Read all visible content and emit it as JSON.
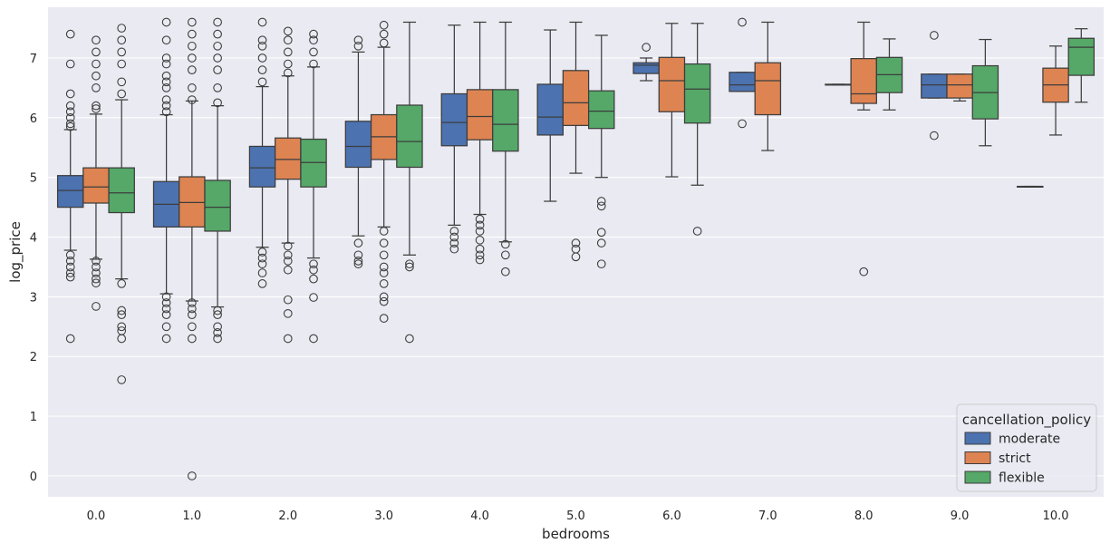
{
  "chart_data": {
    "type": "boxplot",
    "title": "",
    "xlabel": "bedrooms",
    "ylabel": "log_price",
    "categories": [
      "0.0",
      "1.0",
      "2.0",
      "3.0",
      "4.0",
      "5.0",
      "6.0",
      "7.0",
      "8.0",
      "9.0",
      "10.0"
    ],
    "ylim": [
      -0.35,
      7.85
    ],
    "yticks": [
      0,
      1,
      2,
      3,
      4,
      5,
      6,
      7
    ],
    "grid": true,
    "legend": {
      "title": "cancellation_policy",
      "position": "bottom-right",
      "entries": [
        "moderate",
        "strict",
        "flexible"
      ]
    },
    "colors": {
      "moderate": "#4c72b0",
      "strict": "#dd8452",
      "flexible": "#55a868",
      "background": "#eaeaf2",
      "grid": "#ffffff",
      "line": "#3d3d3d"
    },
    "series": [
      {
        "name": "moderate",
        "boxes": [
          {
            "category": "0.0",
            "whislo": 3.78,
            "q1": 4.5,
            "med": 4.78,
            "q3": 5.03,
            "whishi": 5.8,
            "fliers": [
              5.85,
              5.9,
              6.0,
              6.1,
              6.2,
              6.4,
              6.9,
              7.4,
              3.7,
              3.6,
              3.5,
              3.4,
              3.33,
              2.3
            ]
          },
          {
            "category": "1.0",
            "whislo": 3.05,
            "q1": 4.17,
            "med": 4.55,
            "q3": 4.93,
            "whishi": 6.05,
            "fliers": [
              6.1,
              6.2,
              6.3,
              6.5,
              6.6,
              6.7,
              6.9,
              7.0,
              7.3,
              7.6,
              3.0,
              2.9,
              2.8,
              2.7,
              2.5,
              2.3
            ]
          },
          {
            "category": "2.0",
            "whislo": 3.83,
            "q1": 4.84,
            "med": 5.16,
            "q3": 5.52,
            "whishi": 6.52,
            "fliers": [
              6.6,
              6.8,
              7.0,
              7.2,
              7.3,
              7.6,
              3.75,
              3.65,
              3.55,
              3.4,
              3.22
            ]
          },
          {
            "category": "3.0",
            "whislo": 4.02,
            "q1": 5.17,
            "med": 5.52,
            "q3": 5.94,
            "whishi": 7.1,
            "fliers": [
              7.2,
              7.3,
              3.9,
              3.7,
              3.6,
              3.55
            ]
          },
          {
            "category": "4.0",
            "whislo": 4.2,
            "q1": 5.53,
            "med": 5.92,
            "q3": 6.4,
            "whishi": 7.55,
            "fliers": [
              4.1,
              4.0,
              3.9,
              3.8
            ]
          },
          {
            "category": "5.0",
            "whislo": 4.6,
            "q1": 5.71,
            "med": 6.01,
            "q3": 6.56,
            "whishi": 7.47,
            "fliers": []
          },
          {
            "category": "6.0",
            "whislo": 6.62,
            "q1": 6.74,
            "med": 6.88,
            "q3": 6.92,
            "whishi": 7.0,
            "fliers": [
              7.18
            ]
          },
          {
            "category": "7.0",
            "whislo": 6.44,
            "q1": 6.44,
            "med": 6.55,
            "q3": 6.76,
            "whishi": 6.76,
            "fliers": [
              7.6,
              5.9
            ]
          },
          {
            "category": "8.0",
            "whislo": 6.55,
            "q1": 6.55,
            "med": 6.55,
            "q3": 6.56,
            "whishi": 6.56,
            "fliers": []
          },
          {
            "category": "9.0",
            "whislo": 6.33,
            "q1": 6.33,
            "med": 6.55,
            "q3": 6.73,
            "whishi": 6.73,
            "fliers": [
              7.38,
              5.7
            ]
          },
          {
            "category": "10.0",
            "whislo": 4.84,
            "q1": 4.84,
            "med": 4.84,
            "q3": 4.85,
            "whishi": 4.85,
            "fliers": []
          }
        ]
      },
      {
        "name": "strict",
        "boxes": [
          {
            "category": "0.0",
            "whislo": 3.63,
            "q1": 4.57,
            "med": 4.84,
            "q3": 5.16,
            "whishi": 6.06,
            "fliers": [
              6.15,
              6.2,
              6.5,
              6.7,
              6.9,
              7.1,
              7.3,
              3.6,
              3.5,
              3.4,
              3.3,
              3.23,
              2.84
            ]
          },
          {
            "category": "1.0",
            "whislo": 2.93,
            "q1": 4.17,
            "med": 4.58,
            "q3": 5.01,
            "whishi": 6.28,
            "fliers": [
              6.3,
              6.5,
              6.8,
              7.0,
              7.2,
              7.4,
              7.6,
              2.9,
              2.8,
              2.7,
              2.5,
              2.3,
              0.0
            ]
          },
          {
            "category": "2.0",
            "whislo": 3.9,
            "q1": 4.97,
            "med": 5.3,
            "q3": 5.66,
            "whishi": 6.7,
            "fliers": [
              6.75,
              6.9,
              7.1,
              7.3,
              7.45,
              3.85,
              3.7,
              3.6,
              3.45,
              2.95,
              2.72,
              2.3
            ]
          },
          {
            "category": "3.0",
            "whislo": 4.17,
            "q1": 5.3,
            "med": 5.68,
            "q3": 6.05,
            "whishi": 7.18,
            "fliers": [
              7.25,
              7.4,
              7.55,
              4.1,
              3.9,
              3.7,
              3.5,
              3.4,
              3.22,
              3.0,
              2.92,
              2.64
            ]
          },
          {
            "category": "4.0",
            "whislo": 4.38,
            "q1": 5.63,
            "med": 6.02,
            "q3": 6.47,
            "whishi": 7.6,
            "fliers": [
              4.3,
              4.2,
              4.1,
              3.95,
              3.8,
              3.7,
              3.62
            ]
          },
          {
            "category": "5.0",
            "whislo": 5.07,
            "q1": 5.87,
            "med": 6.25,
            "q3": 6.79,
            "whishi": 7.6,
            "fliers": [
              3.9,
              3.8,
              3.67
            ]
          },
          {
            "category": "6.0",
            "whislo": 5.01,
            "q1": 6.1,
            "med": 6.62,
            "q3": 7.01,
            "whishi": 7.58,
            "fliers": []
          },
          {
            "category": "7.0",
            "whislo": 5.45,
            "q1": 6.05,
            "med": 6.62,
            "q3": 6.92,
            "whishi": 7.6,
            "fliers": []
          },
          {
            "category": "8.0",
            "whislo": 6.13,
            "q1": 6.24,
            "med": 6.4,
            "q3": 6.99,
            "whishi": 7.6,
            "fliers": [
              3.42
            ]
          },
          {
            "category": "9.0",
            "whislo": 6.28,
            "q1": 6.33,
            "med": 6.55,
            "q3": 6.73,
            "whishi": 6.73,
            "fliers": []
          },
          {
            "category": "10.0",
            "whislo": 5.71,
            "q1": 6.26,
            "med": 6.55,
            "q3": 6.83,
            "whishi": 7.2,
            "fliers": []
          }
        ]
      },
      {
        "name": "flexible",
        "boxes": [
          {
            "category": "0.0",
            "whislo": 3.3,
            "q1": 4.41,
            "med": 4.74,
            "q3": 5.16,
            "whishi": 6.3,
            "fliers": [
              6.4,
              6.6,
              6.9,
              7.1,
              7.3,
              7.5,
              3.22,
              2.77,
              2.7,
              2.5,
              2.43,
              2.3,
              1.61
            ]
          },
          {
            "category": "1.0",
            "whislo": 2.83,
            "q1": 4.1,
            "med": 4.5,
            "q3": 4.95,
            "whishi": 6.2,
            "fliers": [
              6.25,
              6.5,
              6.8,
              7.0,
              7.2,
              7.4,
              7.6,
              2.77,
              2.7,
              2.5,
              2.4,
              2.3
            ]
          },
          {
            "category": "2.0",
            "whislo": 3.65,
            "q1": 4.84,
            "med": 5.25,
            "q3": 5.64,
            "whishi": 6.85,
            "fliers": [
              6.9,
              7.1,
              7.3,
              7.4,
              3.55,
              3.45,
              3.3,
              2.99,
              2.3
            ]
          },
          {
            "category": "3.0",
            "whislo": 3.7,
            "q1": 5.17,
            "med": 5.6,
            "q3": 6.21,
            "whishi": 7.6,
            "fliers": [
              3.55,
              3.5,
              2.3
            ]
          },
          {
            "category": "4.0",
            "whislo": 3.92,
            "q1": 5.44,
            "med": 5.89,
            "q3": 6.47,
            "whishi": 7.6,
            "fliers": [
              3.88,
              3.7,
              3.42
            ]
          },
          {
            "category": "5.0",
            "whislo": 5.0,
            "q1": 5.82,
            "med": 6.11,
            "q3": 6.45,
            "whishi": 7.38,
            "fliers": [
              4.6,
              4.52,
              4.08,
              3.9,
              3.55
            ]
          },
          {
            "category": "6.0",
            "whislo": 4.87,
            "q1": 5.91,
            "med": 6.48,
            "q3": 6.9,
            "whishi": 7.58,
            "fliers": [
              4.1
            ]
          },
          {
            "category": "8.0",
            "whislo": 6.13,
            "q1": 6.42,
            "med": 6.72,
            "q3": 7.01,
            "whishi": 7.32,
            "fliers": []
          },
          {
            "category": "9.0",
            "whislo": 5.53,
            "q1": 5.98,
            "med": 6.42,
            "q3": 6.87,
            "whishi": 7.31,
            "fliers": []
          },
          {
            "category": "10.0",
            "whislo": 6.26,
            "q1": 6.71,
            "med": 7.18,
            "q3": 7.33,
            "whishi": 7.49,
            "fliers": []
          }
        ]
      }
    ]
  }
}
